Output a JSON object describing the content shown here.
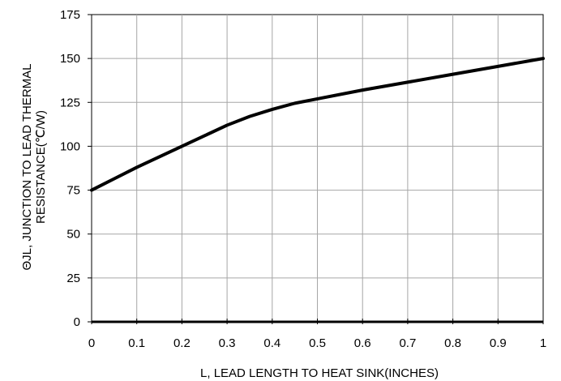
{
  "chart_data": {
    "type": "line",
    "title": "",
    "xlabel": "L, LEAD LENGTH TO HEAT SINK(INCHES)",
    "ylabel_lines": [
      "ΘJL, JUNCTION TO LEAD THERMAL",
      "RESISTANCE(℃/W)"
    ],
    "xlim": [
      0,
      1
    ],
    "ylim": [
      0,
      175
    ],
    "x_ticks": [
      "0",
      "0.1",
      "0.2",
      "0.3",
      "0.4",
      "0.5",
      "0.6",
      "0.7",
      "0.8",
      "0.9",
      "1"
    ],
    "y_ticks": [
      "0",
      "25",
      "50",
      "75",
      "100",
      "125",
      "150",
      "175"
    ],
    "grid": true,
    "series": [
      {
        "x": [
          0,
          0.05,
          0.1,
          0.15,
          0.2,
          0.25,
          0.3,
          0.35,
          0.4,
          0.45,
          0.5,
          0.6,
          0.7,
          0.8,
          0.9,
          1.0
        ],
        "y": [
          75,
          81.5,
          88,
          94,
          100,
          106,
          112,
          117,
          121,
          124.5,
          127,
          132,
          136.5,
          141,
          145.5,
          150
        ]
      }
    ],
    "line_color": "#000000"
  }
}
